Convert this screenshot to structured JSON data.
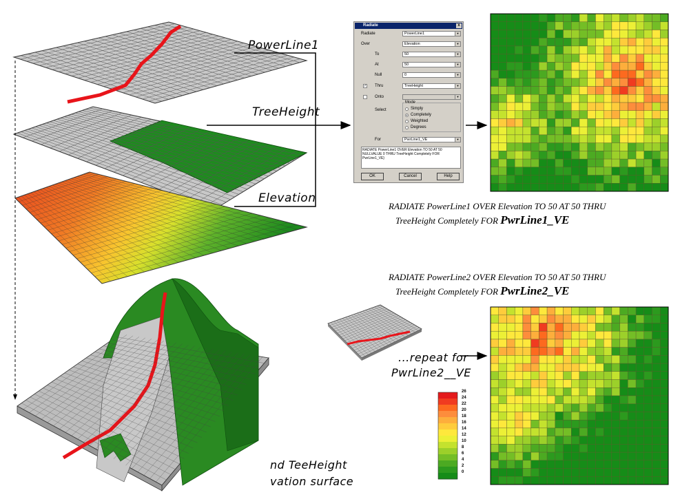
{
  "layer_labels": {
    "powerline": "PowerLine1",
    "treeheight": "TreeHeight",
    "elevation": "Elevation"
  },
  "dialog": {
    "title": "Radiate",
    "close": "x",
    "rows": [
      {
        "label": "Radiate",
        "value": "PowerLine1"
      },
      {
        "label": "Over",
        "value": "Elevation"
      },
      {
        "label": "To",
        "value": "50"
      },
      {
        "label": "At",
        "value": "50"
      },
      {
        "label": "Null",
        "value": "0"
      },
      {
        "label": "Thru",
        "value": "TreeHeight",
        "checked": true
      },
      {
        "label": "Onto",
        "value": "",
        "checked": false
      }
    ],
    "select_label": "Select",
    "mode_label": "Mode",
    "modes": [
      "Simply",
      "Completely",
      "Weighted",
      "Degrees"
    ],
    "selected_mode": "Completely",
    "for_label": "For",
    "for_value": "PwrLine1_VE",
    "command_text": "RADIATE PowerLine1 OVER Elevation TO 50 AT 50 NULLVALUE 0 THRU TreeHeight Completely FOR PwrLine1_VE}",
    "buttons": {
      "ok": "OK",
      "cancel": "Cancel",
      "help": "Help"
    }
  },
  "caption1": {
    "line1": "RADIATE PowerLine1 OVER Elevation  TO 50 AT 50 THRU",
    "line2_prefix": "TreeHeight Completely  FOR ",
    "line2_bold": "PwrLine1_VE"
  },
  "caption2": {
    "line1": "RADIATE PowerLine2 OVER Elevation  TO 50 AT 50 THRU",
    "line2_prefix": "TreeHeight Completely  FOR ",
    "line2_bold": "PwrLine2_VE"
  },
  "repeat": {
    "line1": "...repeat for",
    "line2": "PwrLine2__VE"
  },
  "bottom_note": {
    "line1": "nd TeeHeight",
    "line2": "vation surface"
  },
  "legend": {
    "ticks": [
      "26",
      "24",
      "22",
      "20",
      "18",
      "16",
      "14",
      "12",
      "10",
      "8",
      "6",
      "4",
      "2",
      "0"
    ],
    "colors": [
      "#e41a1c",
      "#f03b20",
      "#fd6a1f",
      "#fd8d3c",
      "#fdae3c",
      "#fecc3c",
      "#fee83c",
      "#ecf036",
      "#c4e22e",
      "#9cd02a",
      "#74be26",
      "#4caa22",
      "#2c9a1e",
      "#168c18"
    ]
  }
}
